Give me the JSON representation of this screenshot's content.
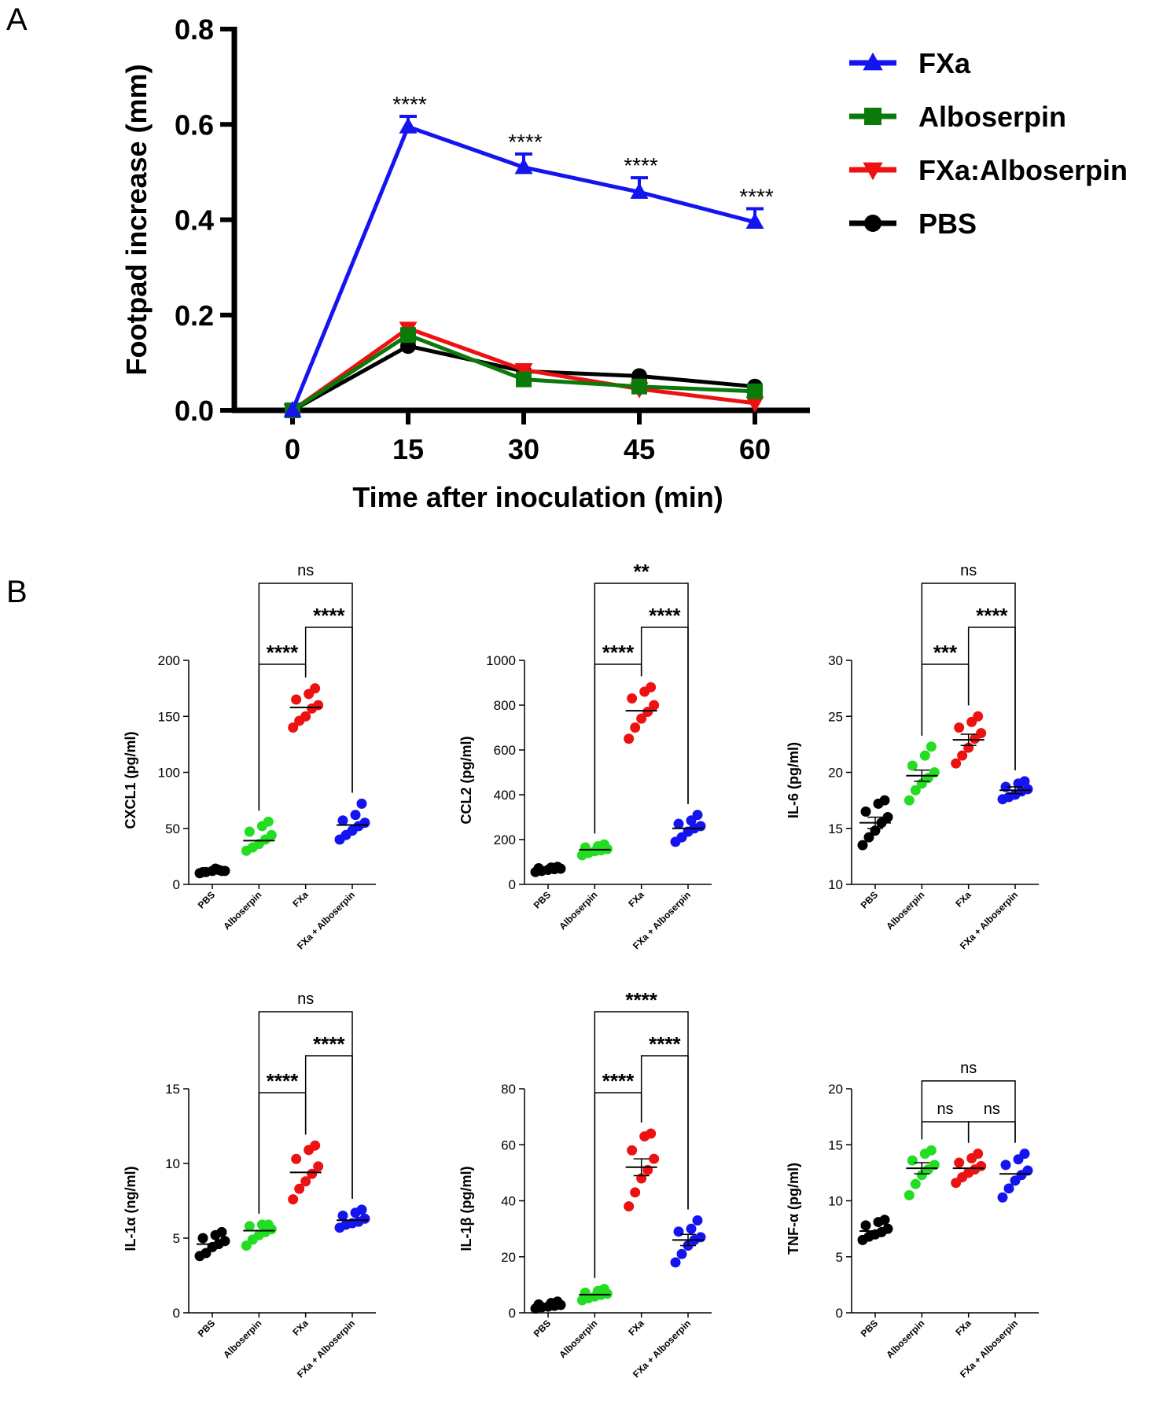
{
  "panels": {
    "a": "A",
    "b": "B"
  },
  "chart_data": [
    {
      "type": "line",
      "panel": "A",
      "xlabel": "Time after inoculation (min)",
      "ylabel": "Footpad increase (mm)",
      "x": [
        0,
        15,
        30,
        45,
        60
      ],
      "x_ticks": [
        "0",
        "15",
        "30",
        "45",
        "60"
      ],
      "y_ticks": [
        "0.0",
        "0.2",
        "0.4",
        "0.6",
        "0.8"
      ],
      "ylim": [
        0,
        0.8
      ],
      "series": [
        {
          "name": "FXa",
          "color": "#1414f0",
          "marker": "triangle-up",
          "values": [
            0.0,
            0.595,
            0.51,
            0.458,
            0.395
          ],
          "errors": [
            0,
            0.022,
            0.028,
            0.03,
            0.028
          ]
        },
        {
          "name": "Alboserpin",
          "color": "#0a7a0a",
          "marker": "square",
          "values": [
            0.0,
            0.158,
            0.065,
            0.05,
            0.04
          ],
          "errors": [
            0,
            0,
            0,
            0,
            0
          ]
        },
        {
          "name": "FXa:Alboserpin",
          "color": "#ee1111",
          "marker": "triangle-down",
          "values": [
            0.0,
            0.172,
            0.085,
            0.045,
            0.015
          ],
          "errors": [
            0,
            0,
            0,
            0,
            0
          ]
        },
        {
          "name": "PBS",
          "color": "#000000",
          "marker": "circle",
          "values": [
            0.0,
            0.135,
            0.082,
            0.072,
            0.05
          ],
          "errors": [
            0,
            0,
            0,
            0,
            0
          ]
        }
      ],
      "annotations": [
        {
          "x": 15,
          "text": "****"
        },
        {
          "x": 30,
          "text": "****"
        },
        {
          "x": 45,
          "text": "****"
        },
        {
          "x": 60,
          "text": "****"
        }
      ]
    },
    {
      "type": "scatter",
      "panel": "B",
      "ylabel": "CXCL1 (pg/ml)",
      "ylim": [
        0,
        200
      ],
      "y_ticks": [
        "0",
        "50",
        "100",
        "150",
        "200"
      ],
      "categories": [
        "PBS",
        "Alboserpin",
        "FXa",
        "FXa + Alboserpin"
      ],
      "colors": [
        "#000000",
        "#22dd22",
        "#ee1111",
        "#1414f0"
      ],
      "means": [
        12,
        39,
        158,
        53
      ],
      "sems": [
        0,
        0,
        0,
        0
      ],
      "groups": [
        [
          10,
          11,
          12,
          13,
          12,
          11,
          14,
          12
        ],
        [
          30,
          33,
          36,
          40,
          44,
          47,
          52,
          56
        ],
        [
          140,
          146,
          150,
          157,
          160,
          165,
          170,
          175
        ],
        [
          40,
          44,
          48,
          52,
          55,
          57,
          62,
          72
        ]
      ],
      "brackets": [
        {
          "from": 1,
          "to": 3,
          "text": "ns"
        },
        {
          "from": 2,
          "to": 3,
          "text": "****"
        },
        {
          "from": 1,
          "to": 2,
          "text": "****"
        }
      ]
    },
    {
      "type": "scatter",
      "panel": "B",
      "ylabel": "CCL2 (pg/ml)",
      "ylim": [
        0,
        1000
      ],
      "y_ticks": [
        "0",
        "200",
        "400",
        "600",
        "800",
        "1000"
      ],
      "categories": [
        "PBS",
        "Alboserpin",
        "FXa",
        "FXa + Alboserpin"
      ],
      "colors": [
        "#000000",
        "#22dd22",
        "#ee1111",
        "#1414f0"
      ],
      "means": [
        68,
        155,
        775,
        250
      ],
      "sems": [
        0,
        0,
        0,
        0
      ],
      "groups": [
        [
          55,
          60,
          65,
          68,
          70,
          72,
          75,
          78
        ],
        [
          130,
          140,
          148,
          152,
          158,
          165,
          170,
          178
        ],
        [
          650,
          700,
          740,
          770,
          800,
          830,
          860,
          880
        ],
        [
          190,
          210,
          235,
          250,
          260,
          270,
          285,
          310
        ]
      ],
      "brackets": [
        {
          "from": 1,
          "to": 3,
          "text": "**"
        },
        {
          "from": 2,
          "to": 3,
          "text": "****"
        },
        {
          "from": 1,
          "to": 2,
          "text": "****"
        }
      ]
    },
    {
      "type": "scatter",
      "panel": "B",
      "ylabel": "IL-6 (pg/ml)",
      "ylim": [
        10,
        30
      ],
      "y_ticks": [
        "10",
        "15",
        "20",
        "25",
        "30"
      ],
      "categories": [
        "PBS",
        "Alboserpin",
        "FXa",
        "FXa + Alboserpin"
      ],
      "colors": [
        "#000000",
        "#22dd22",
        "#ee1111",
        "#1414f0"
      ],
      "means": [
        15.5,
        19.7,
        22.9,
        18.4
      ],
      "sems": [
        0.5,
        0.5,
        0.5,
        0.3
      ],
      "groups": [
        [
          13.5,
          14.2,
          14.8,
          15.5,
          16.0,
          16.5,
          17.2,
          17.5
        ],
        [
          17.5,
          18.4,
          19.0,
          19.5,
          20.0,
          20.6,
          21.5,
          22.3
        ],
        [
          20.8,
          21.5,
          22.2,
          23.0,
          23.5,
          24.0,
          24.5,
          25.0
        ],
        [
          17.6,
          17.8,
          18.0,
          18.3,
          18.5,
          18.7,
          19.0,
          19.2
        ]
      ],
      "brackets": [
        {
          "from": 1,
          "to": 3,
          "text": "ns"
        },
        {
          "from": 2,
          "to": 3,
          "text": "****"
        },
        {
          "from": 1,
          "to": 2,
          "text": "***"
        }
      ]
    },
    {
      "type": "scatter",
      "panel": "B",
      "ylabel": "IL-1α (ng/ml)",
      "ylim": [
        0,
        15
      ],
      "y_ticks": [
        "0",
        "5",
        "10",
        "15"
      ],
      "categories": [
        "PBS",
        "Alboserpin",
        "FXa",
        "FXa + Alboserpin"
      ],
      "colors": [
        "#000000",
        "#22dd22",
        "#ee1111",
        "#1414f0"
      ],
      "means": [
        4.6,
        5.5,
        9.4,
        6.2
      ],
      "sems": [
        0,
        0,
        0,
        0
      ],
      "groups": [
        [
          3.8,
          4.0,
          4.4,
          4.6,
          4.8,
          5.0,
          5.2,
          5.4
        ],
        [
          4.5,
          4.9,
          5.2,
          5.4,
          5.6,
          5.8,
          5.9,
          5.9
        ],
        [
          7.6,
          8.3,
          8.8,
          9.3,
          9.8,
          10.3,
          10.9,
          11.2
        ],
        [
          5.7,
          5.9,
          6.0,
          6.1,
          6.3,
          6.5,
          6.7,
          6.9
        ]
      ],
      "brackets": [
        {
          "from": 1,
          "to": 3,
          "text": "ns"
        },
        {
          "from": 2,
          "to": 3,
          "text": "****"
        },
        {
          "from": 1,
          "to": 2,
          "text": "****"
        }
      ]
    },
    {
      "type": "scatter",
      "panel": "B",
      "ylabel": "IL-1β (pg/ml)",
      "ylim": [
        0,
        80
      ],
      "y_ticks": [
        "0",
        "20",
        "40",
        "60",
        "80"
      ],
      "categories": [
        "PBS",
        "Alboserpin",
        "FXa",
        "FXa + Alboserpin"
      ],
      "colors": [
        "#000000",
        "#22dd22",
        "#ee1111",
        "#1414f0"
      ],
      "means": [
        2.5,
        6.5,
        52,
        26
      ],
      "sems": [
        0,
        0,
        3,
        2
      ],
      "groups": [
        [
          1.5,
          2.0,
          2.2,
          2.5,
          2.8,
          3.0,
          3.5,
          4.0
        ],
        [
          4.5,
          5.2,
          5.8,
          6.4,
          6.8,
          7.2,
          7.8,
          8.5
        ],
        [
          38,
          43,
          48,
          51,
          55,
          58,
          63,
          64
        ],
        [
          18,
          21,
          24,
          26,
          27,
          29,
          30,
          33
        ]
      ],
      "brackets": [
        {
          "from": 1,
          "to": 3,
          "text": "****"
        },
        {
          "from": 2,
          "to": 3,
          "text": "****"
        },
        {
          "from": 1,
          "to": 2,
          "text": "****"
        }
      ]
    },
    {
      "type": "scatter",
      "panel": "B",
      "ylabel": "TNF-α (pg/ml)",
      "ylim": [
        0,
        20
      ],
      "y_ticks": [
        "0",
        "5",
        "10",
        "15",
        "20"
      ],
      "categories": [
        "PBS",
        "Alboserpin",
        "FXa",
        "FXa + Alboserpin"
      ],
      "colors": [
        "#000000",
        "#22dd22",
        "#ee1111",
        "#1414f0"
      ],
      "means": [
        7.3,
        12.9,
        12.9,
        12.4
      ],
      "sems": [
        0,
        0.5,
        0,
        0
      ],
      "groups": [
        [
          6.5,
          6.8,
          7.0,
          7.2,
          7.5,
          7.8,
          8.1,
          8.3
        ],
        [
          10.5,
          11.5,
          12.3,
          12.8,
          13.2,
          13.6,
          14.2,
          14.5
        ],
        [
          11.6,
          12.1,
          12.5,
          12.8,
          13.1,
          13.4,
          13.8,
          14.2
        ],
        [
          10.3,
          11.1,
          11.8,
          12.3,
          12.7,
          13.2,
          13.7,
          14.2
        ]
      ],
      "brackets": [
        {
          "from": 1,
          "to": 3,
          "text": "ns"
        },
        {
          "from": 1,
          "to": 2,
          "text": "ns"
        },
        {
          "from": 2,
          "to": 3,
          "text": "ns"
        }
      ]
    }
  ]
}
